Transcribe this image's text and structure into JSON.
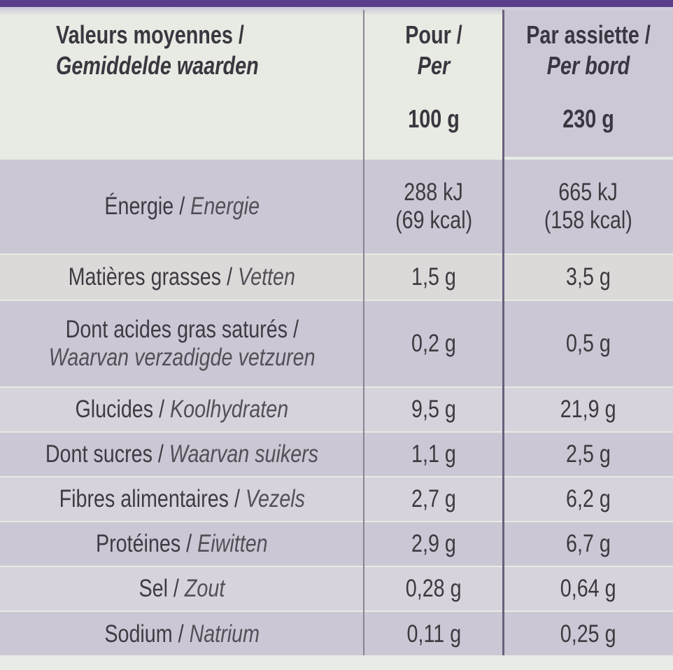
{
  "table": {
    "header": {
      "nutrient_fr": "Valeurs moyennes /",
      "nutrient_nl": "Gemiddelde waarden",
      "col1_fr": "Pour /",
      "col1_nl": "Per",
      "col1_qty": "100 g",
      "col2_fr": "Par assiette /",
      "col2_nl": "Per bord",
      "col2_qty": "230 g"
    },
    "rows": [
      {
        "fr": "Énergie / ",
        "nl": "Energie",
        "v1a": "288 kJ",
        "v1b": "(69 kcal)",
        "v2a": "665 kJ",
        "v2b": "(158 kcal)"
      },
      {
        "fr": "Matières grasses / ",
        "nl": "Vetten",
        "v1": "1,5 g",
        "v2": "3,5 g"
      },
      {
        "fr": "Dont acides gras saturés /",
        "nl": "Waarvan verzadigde vetzuren",
        "v1": "0,2 g",
        "v2": "0,5 g"
      },
      {
        "fr": "Glucides / ",
        "nl": "Koolhydraten",
        "v1": "9,5 g",
        "v2": "21,9 g"
      },
      {
        "fr": "Dont sucres / ",
        "nl": "Waarvan suikers",
        "v1": "1,1 g",
        "v2": "2,5 g"
      },
      {
        "fr": "Fibres alimentaires / ",
        "nl": "Vezels",
        "v1": "2,7 g",
        "v2": "6,2 g"
      },
      {
        "fr": "Protéines / ",
        "nl": "Eiwitten",
        "v1": "2,9 g",
        "v2": "6,7 g"
      },
      {
        "fr": "Sel / ",
        "nl": "Zout",
        "v1": "0,28 g",
        "v2": "0,64 g"
      },
      {
        "fr": "Sodium / ",
        "nl": "Natrium",
        "v1": "0,11 g",
        "v2": "0,25 g"
      }
    ]
  },
  "colors": {
    "background": "#e7ebe3",
    "shade": "#cbc7d4",
    "accent": "#5a3e8c"
  }
}
